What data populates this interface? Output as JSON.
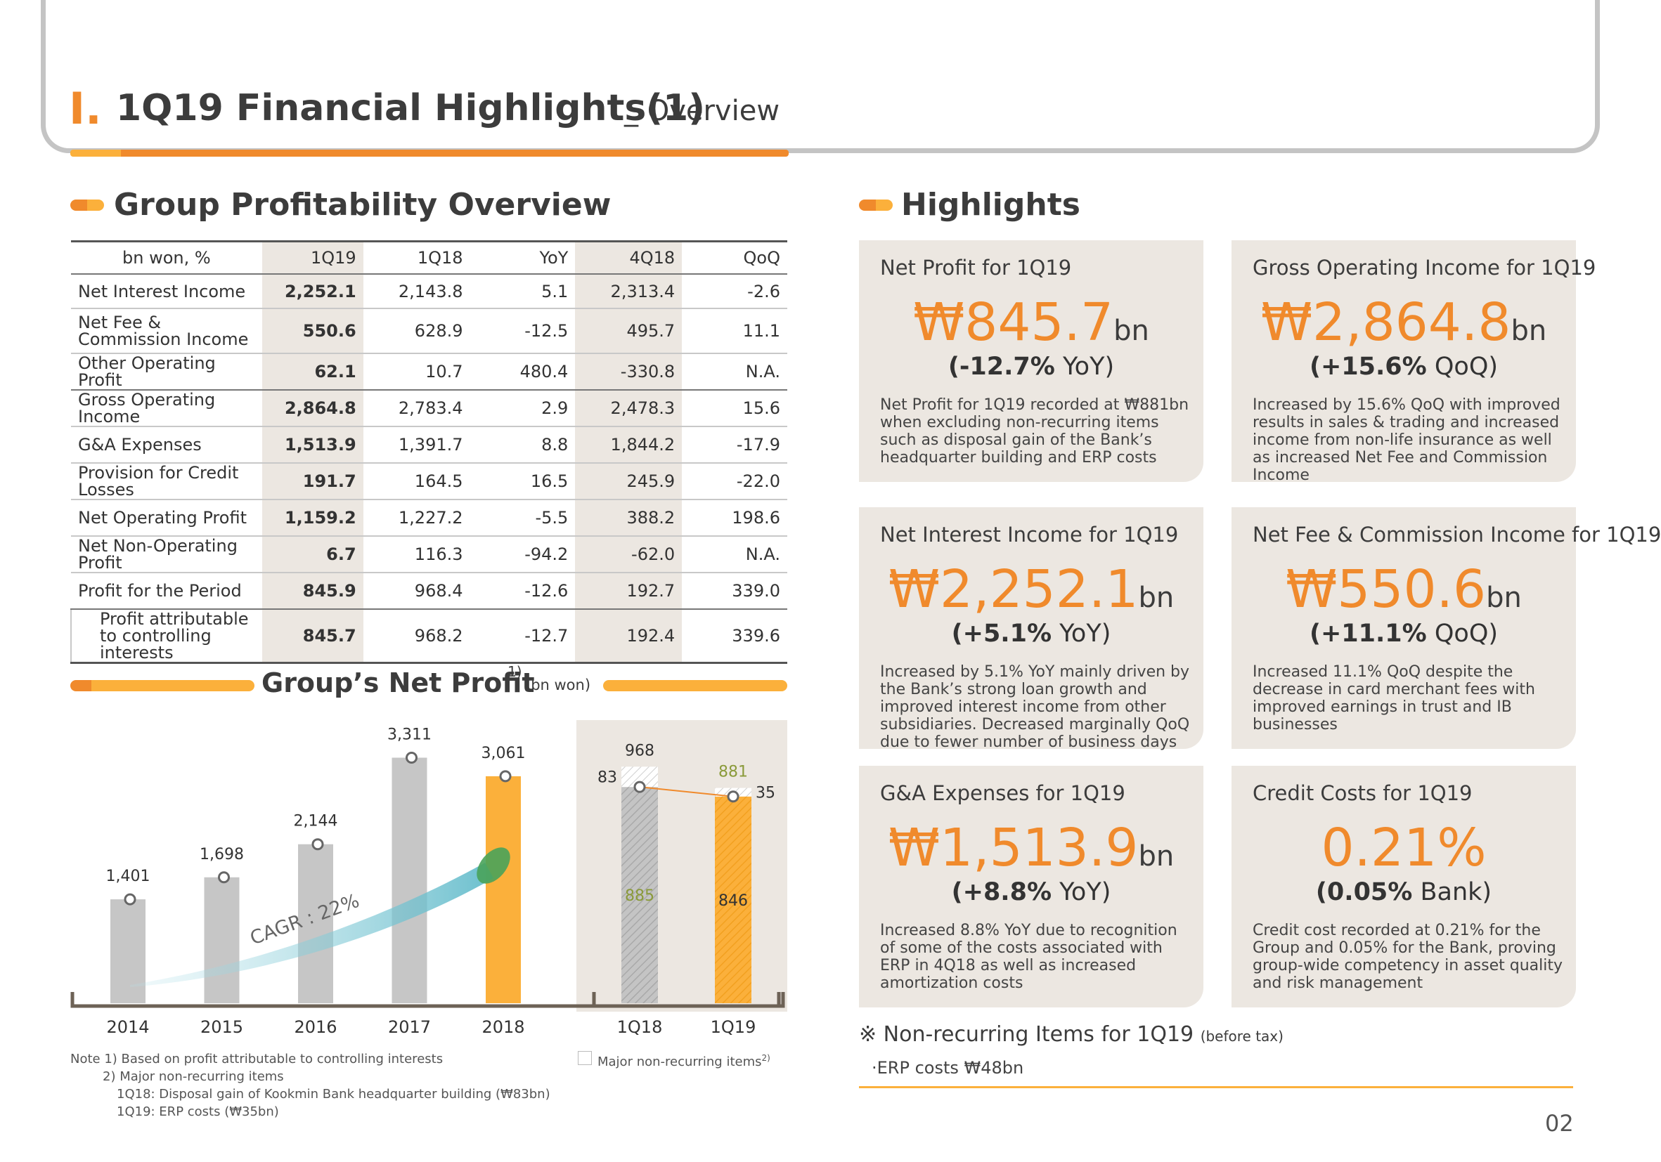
{
  "header": {
    "section_num": "I.",
    "title": "1Q19 Financial Highlights(1)",
    "subtitle": "_ Overview"
  },
  "profitability": {
    "title": "Group Profitability Overview",
    "columns": [
      "bn won, %",
      "1Q19",
      "1Q18",
      "YoY",
      "4Q18",
      "QoQ"
    ],
    "rows": [
      {
        "label": "Net Interest Income",
        "values": [
          "2,252.1",
          "2,143.8",
          "5.1",
          "2,313.4",
          "-2.6"
        ]
      },
      {
        "label": "Net Fee & Commission Income",
        "values": [
          "550.6",
          "628.9",
          "-12.5",
          "495.7",
          "11.1"
        ]
      },
      {
        "label": "Other Operating Profit",
        "values": [
          "62.1",
          "10.7",
          "480.4",
          "-330.8",
          "N.A."
        ]
      },
      {
        "label": "Gross Operating Income",
        "values": [
          "2,864.8",
          "2,783.4",
          "2.9",
          "2,478.3",
          "15.6"
        ]
      },
      {
        "label": "G&A Expenses",
        "values": [
          "1,513.9",
          "1,391.7",
          "8.8",
          "1,844.2",
          "-17.9"
        ]
      },
      {
        "label": "Provision for Credit Losses",
        "values": [
          "191.7",
          "164.5",
          "16.5",
          "245.9",
          "-22.0"
        ]
      },
      {
        "label": "Net Operating Profit",
        "values": [
          "1,159.2",
          "1,227.2",
          "-5.5",
          "388.2",
          "198.6"
        ]
      },
      {
        "label": "Net Non-Operating Profit",
        "values": [
          "6.7",
          "116.3",
          "-94.2",
          "-62.0",
          "N.A."
        ]
      },
      {
        "label": "Profit for the Period",
        "values": [
          "845.9",
          "968.4",
          "-12.6",
          "192.7",
          "339.0"
        ]
      },
      {
        "label": "Profit attributable to controlling interests",
        "values": [
          "845.7",
          "968.2",
          "-12.7",
          "192.4",
          "339.6"
        ]
      }
    ]
  },
  "net_profit": {
    "title": "Group’s Net Profit",
    "sup": "1)",
    "unit": "(bn won)",
    "cagr": "CAGR : 22%",
    "legend": "Major non-recurring items",
    "legend_sup": "2)",
    "notes": [
      "Note 1) Based on profit attributable to controlling interests",
      "2) Major non-recurring items",
      "1Q18: Disposal gain of Kookmin Bank headquarter building (₩83bn)",
      "1Q19: ERP costs (₩35bn)"
    ]
  },
  "chart_data": [
    {
      "type": "bar",
      "title": "Group’s Net Profit",
      "ylabel": "bn won",
      "categories": [
        "2014",
        "2015",
        "2016",
        "2017",
        "2018"
      ],
      "values": [
        1401,
        1698,
        2144,
        3311,
        3061
      ],
      "labels": [
        "1,401",
        "1,698",
        "2,144",
        "3,311",
        "3,061"
      ],
      "ylim": [
        0,
        3600
      ],
      "highlight": "2018",
      "colors": {
        "default": "#c6c6c6",
        "highlight": "#fbb03b"
      }
    },
    {
      "type": "bar",
      "categories": [
        "1Q18",
        "1Q19"
      ],
      "series": [
        {
          "values": [
            885,
            846
          ]
        },
        {
          "name": "Major non-recurring items",
          "values": [
            83,
            35
          ]
        }
      ],
      "totals": [
        968,
        881
      ],
      "ylim": [
        0,
        1150
      ]
    }
  ],
  "highlights": {
    "title": "Highlights",
    "cards": [
      {
        "title": "Net Profit for 1Q19",
        "value": "₩845.7",
        "unit": "bn",
        "change": "(-12.7%",
        "change_unit": "YoY)",
        "desc": "Net Profit for 1Q19 recorded at ₩881bn when excluding non-recurring items such as disposal gain of the Bank’s headquarter building and ERP costs"
      },
      {
        "title": "Gross Operating Income for 1Q19",
        "value": "₩2,864.8",
        "unit": "bn",
        "change": "(+15.6%",
        "change_unit": "QoQ)",
        "desc": "Increased by 15.6% QoQ with improved results in sales & trading and increased income from non-life insurance as well as increased Net Fee and Commission Income"
      },
      {
        "title": "Net Interest Income for 1Q19",
        "value": "₩2,252.1",
        "unit": "bn",
        "change": "(+5.1%",
        "change_unit": "YoY)",
        "desc": "Increased by 5.1% YoY mainly driven by the Bank’s strong loan growth and improved interest income from other subsidiaries. Decreased marginally QoQ due to fewer number of business days"
      },
      {
        "title": "Net Fee & Commission Income for 1Q19",
        "value": "₩550.6",
        "unit": "bn",
        "change": "(+11.1%",
        "change_unit": "QoQ)",
        "desc": "Increased 11.1% QoQ despite the decrease in card merchant fees with improved earnings in trust and IB businesses"
      },
      {
        "title": "G&A Expenses for 1Q19",
        "value": "₩1,513.9",
        "unit": "bn",
        "change": "(+8.8%",
        "change_unit": "YoY)",
        "desc": "Increased 8.8% YoY due to recognition of some of the costs associated with ERP in 4Q18 as well as increased amortization costs"
      },
      {
        "title": "Credit Costs for 1Q19",
        "value": "0.21%",
        "unit": "",
        "change": "(0.05%",
        "change_unit": "Bank)",
        "desc": "Credit cost recorded at 0.21% for the Group and 0.05% for the Bank, proving group-wide competency in asset quality and risk management"
      }
    ]
  },
  "non_recurring": {
    "title": "※ Non-recurring Items for 1Q19",
    "title_note": "(before tax)",
    "item": "·ERP costs ₩48bn"
  },
  "page_number": "02"
}
